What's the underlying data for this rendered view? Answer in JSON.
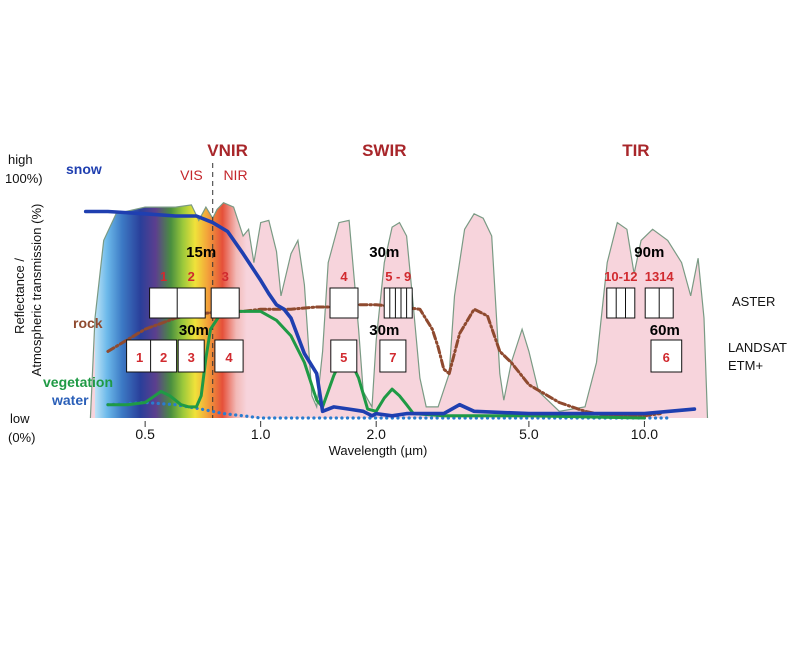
{
  "chart_data": {
    "type": "line",
    "xlabel": "Wavelength (µm)",
    "ylabel_lines": [
      "Reflectance /",
      "Atmospheric transmission (%)"
    ],
    "x_scale": "log",
    "xlim": [
      0.3,
      15
    ],
    "ylim": [
      0,
      100
    ],
    "x_ticks": [
      {
        "v": 0.5,
        "label": "0.5"
      },
      {
        "v": 1.0,
        "label": "1.0"
      },
      {
        "v": 2.0,
        "label": "2.0"
      },
      {
        "v": 5.0,
        "label": "5.0"
      },
      {
        "v": 10.0,
        "label": "10.0"
      }
    ],
    "y_high": [
      "high",
      "100%)"
    ],
    "y_low": [
      "low",
      "(0%)"
    ],
    "regions": [
      {
        "label": "VNIR",
        "x": 0.82
      },
      {
        "label": "SWIR",
        "x": 2.1
      },
      {
        "label": "TIR",
        "x": 9.5
      }
    ],
    "subregions": [
      {
        "label": "VIS",
        "x": 0.66
      },
      {
        "label": "NIR",
        "x": 0.86
      }
    ],
    "vis_nir_boundary": 0.75,
    "transmission": [
      [
        0.36,
        0
      ],
      [
        0.37,
        45
      ],
      [
        0.39,
        80
      ],
      [
        0.42,
        92
      ],
      [
        0.5,
        95
      ],
      [
        0.6,
        95
      ],
      [
        0.66,
        96
      ],
      [
        0.69,
        89
      ],
      [
        0.72,
        95
      ],
      [
        0.75,
        90
      ],
      [
        0.77,
        94
      ],
      [
        0.8,
        97
      ],
      [
        0.85,
        95
      ],
      [
        0.9,
        82
      ],
      [
        0.93,
        85
      ],
      [
        0.96,
        70
      ],
      [
        1.0,
        88
      ],
      [
        1.05,
        89
      ],
      [
        1.1,
        75
      ],
      [
        1.13,
        55
      ],
      [
        1.2,
        74
      ],
      [
        1.25,
        80
      ],
      [
        1.3,
        60
      ],
      [
        1.36,
        10
      ],
      [
        1.4,
        5
      ],
      [
        1.45,
        30
      ],
      [
        1.5,
        70
      ],
      [
        1.6,
        88
      ],
      [
        1.7,
        89
      ],
      [
        1.8,
        40
      ],
      [
        1.85,
        12
      ],
      [
        1.95,
        5
      ],
      [
        2.0,
        35
      ],
      [
        2.1,
        70
      ],
      [
        2.2,
        86
      ],
      [
        2.3,
        88
      ],
      [
        2.4,
        82
      ],
      [
        2.5,
        50
      ],
      [
        2.6,
        18
      ],
      [
        2.7,
        5
      ],
      [
        2.9,
        5
      ],
      [
        3.1,
        20
      ],
      [
        3.2,
        55
      ],
      [
        3.4,
        85
      ],
      [
        3.6,
        92
      ],
      [
        3.8,
        90
      ],
      [
        4.0,
        82
      ],
      [
        4.2,
        20
      ],
      [
        4.3,
        8
      ],
      [
        4.5,
        25
      ],
      [
        4.8,
        40
      ],
      [
        5.0,
        30
      ],
      [
        5.3,
        12
      ],
      [
        6.0,
        3
      ],
      [
        7.0,
        5
      ],
      [
        7.5,
        25
      ],
      [
        8.0,
        70
      ],
      [
        8.5,
        88
      ],
      [
        9.0,
        85
      ],
      [
        9.4,
        65
      ],
      [
        9.8,
        80
      ],
      [
        10.5,
        85
      ],
      [
        11.5,
        80
      ],
      [
        12.5,
        70
      ],
      [
        13.2,
        55
      ],
      [
        13.8,
        72
      ],
      [
        14.3,
        45
      ],
      [
        14.6,
        0
      ]
    ],
    "series": [
      {
        "name": "snow",
        "color": "#1f3fb0",
        "style": "solid",
        "points": [
          [
            0.35,
            93
          ],
          [
            0.4,
            93
          ],
          [
            0.5,
            92
          ],
          [
            0.6,
            91
          ],
          [
            0.68,
            91
          ],
          [
            0.75,
            88
          ],
          [
            0.82,
            84
          ],
          [
            0.9,
            74
          ],
          [
            1.0,
            62
          ],
          [
            1.05,
            56
          ],
          [
            1.1,
            51
          ],
          [
            1.15,
            49
          ],
          [
            1.2,
            45
          ],
          [
            1.3,
            29
          ],
          [
            1.4,
            20
          ],
          [
            1.45,
            3
          ],
          [
            1.55,
            5
          ],
          [
            1.7,
            4
          ],
          [
            1.85,
            3
          ],
          [
            1.95,
            1
          ],
          [
            2.0,
            2
          ],
          [
            2.2,
            1
          ],
          [
            2.4,
            2
          ],
          [
            2.6,
            2
          ],
          [
            3.0,
            2
          ],
          [
            3.3,
            6
          ],
          [
            3.6,
            3
          ],
          [
            5.0,
            2
          ],
          [
            10.0,
            2
          ],
          [
            13.5,
            4
          ]
        ]
      },
      {
        "name": "rock",
        "color": "#8f4a2f",
        "style": "dashdot",
        "points": [
          [
            0.4,
            30
          ],
          [
            0.5,
            40
          ],
          [
            0.6,
            45
          ],
          [
            0.7,
            47
          ],
          [
            0.8,
            48
          ],
          [
            0.9,
            48
          ],
          [
            1.0,
            49
          ],
          [
            1.2,
            49
          ],
          [
            1.4,
            50
          ],
          [
            1.6,
            50
          ],
          [
            1.8,
            51
          ],
          [
            2.0,
            51
          ],
          [
            2.3,
            50
          ],
          [
            2.6,
            49
          ],
          [
            2.8,
            40
          ],
          [
            2.9,
            32
          ],
          [
            3.0,
            22
          ],
          [
            3.1,
            20
          ],
          [
            3.3,
            38
          ],
          [
            3.6,
            49
          ],
          [
            3.9,
            46
          ],
          [
            4.2,
            30
          ],
          [
            4.5,
            25
          ],
          [
            5.0,
            15
          ],
          [
            6.0,
            7
          ],
          [
            7.0,
            3
          ],
          [
            8.0,
            1
          ],
          [
            9.0,
            1
          ],
          [
            10.0,
            1
          ],
          [
            11.0,
            2
          ]
        ]
      },
      {
        "name": "vegetation",
        "color": "#1f9a45",
        "style": "solid",
        "points": [
          [
            0.4,
            6
          ],
          [
            0.45,
            6
          ],
          [
            0.5,
            7
          ],
          [
            0.53,
            10
          ],
          [
            0.55,
            12
          ],
          [
            0.58,
            10
          ],
          [
            0.62,
            6
          ],
          [
            0.65,
            5
          ],
          [
            0.68,
            5
          ],
          [
            0.7,
            10
          ],
          [
            0.72,
            27
          ],
          [
            0.74,
            40
          ],
          [
            0.78,
            46
          ],
          [
            0.85,
            48
          ],
          [
            1.0,
            48
          ],
          [
            1.1,
            44
          ],
          [
            1.2,
            37
          ],
          [
            1.3,
            25
          ],
          [
            1.4,
            8
          ],
          [
            1.45,
            5
          ],
          [
            1.55,
            19
          ],
          [
            1.65,
            29
          ],
          [
            1.7,
            27
          ],
          [
            1.8,
            18
          ],
          [
            1.9,
            4
          ],
          [
            2.0,
            3
          ],
          [
            2.1,
            9
          ],
          [
            2.2,
            13
          ],
          [
            2.3,
            10
          ],
          [
            2.4,
            6
          ],
          [
            2.5,
            2
          ],
          [
            3.0,
            1
          ],
          [
            5.0,
            1
          ],
          [
            10.0,
            0
          ]
        ]
      },
      {
        "name": "water",
        "color": "#2a7ccf",
        "style": "dotted",
        "points": [
          [
            0.4,
            6
          ],
          [
            0.5,
            7
          ],
          [
            0.6,
            6
          ],
          [
            0.7,
            4
          ],
          [
            0.8,
            2
          ],
          [
            0.9,
            1
          ],
          [
            1.0,
            0
          ],
          [
            1.5,
            0
          ],
          [
            2.0,
            0
          ],
          [
            3.0,
            0
          ],
          [
            5.0,
            0
          ],
          [
            8.0,
            0
          ],
          [
            10.0,
            0
          ],
          [
            11.5,
            0
          ]
        ]
      }
    ],
    "instruments": [
      {
        "label": "ASTER",
        "bands": [
          {
            "from": 0.52,
            "to": 0.6,
            "label": "1"
          },
          {
            "from": 0.63,
            "to": 0.69,
            "label": "2"
          },
          {
            "from": 0.76,
            "to": 0.86,
            "label": "3"
          },
          {
            "from": 1.6,
            "to": 1.7,
            "label": "4"
          },
          {
            "from": 2.145,
            "to": 2.43,
            "label": "5 - 9",
            "subdivisions": 5
          },
          {
            "from": 8.125,
            "to": 9.275,
            "label": "10-12",
            "subdivisions": 3
          },
          {
            "from": 10.25,
            "to": 11.65,
            "label": "1314",
            "subdivisions": 2
          }
        ],
        "resolutions": [
          {
            "label": "15m",
            "x": 0.7
          },
          {
            "label": "30m",
            "x": 2.1
          },
          {
            "label": "90m",
            "x": 10.3
          }
        ]
      },
      {
        "label_lines": [
          "LANDSAT",
          "ETM+"
        ],
        "bands": [
          {
            "from": 0.45,
            "to": 0.52,
            "label": "1"
          },
          {
            "from": 0.52,
            "to": 0.6,
            "label": "2"
          },
          {
            "from": 0.63,
            "to": 0.69,
            "label": "3"
          },
          {
            "from": 0.76,
            "to": 0.9,
            "label": "4"
          },
          {
            "from": 1.55,
            "to": 1.75,
            "label": "5"
          },
          {
            "from": 2.08,
            "to": 2.35,
            "label": "7"
          },
          {
            "from": 10.4,
            "to": 12.5,
            "label": "6"
          }
        ],
        "resolutions": [
          {
            "label": "30m",
            "x": 0.67
          },
          {
            "label": "30m",
            "x": 2.1
          },
          {
            "label": "60m",
            "x": 11.3
          }
        ]
      }
    ],
    "colors": {
      "transmission_fill": "#f7d4dc",
      "transmission_edge": "#7a9a84",
      "region_text": "#a8262a",
      "band_text": "#d12a2f"
    }
  }
}
